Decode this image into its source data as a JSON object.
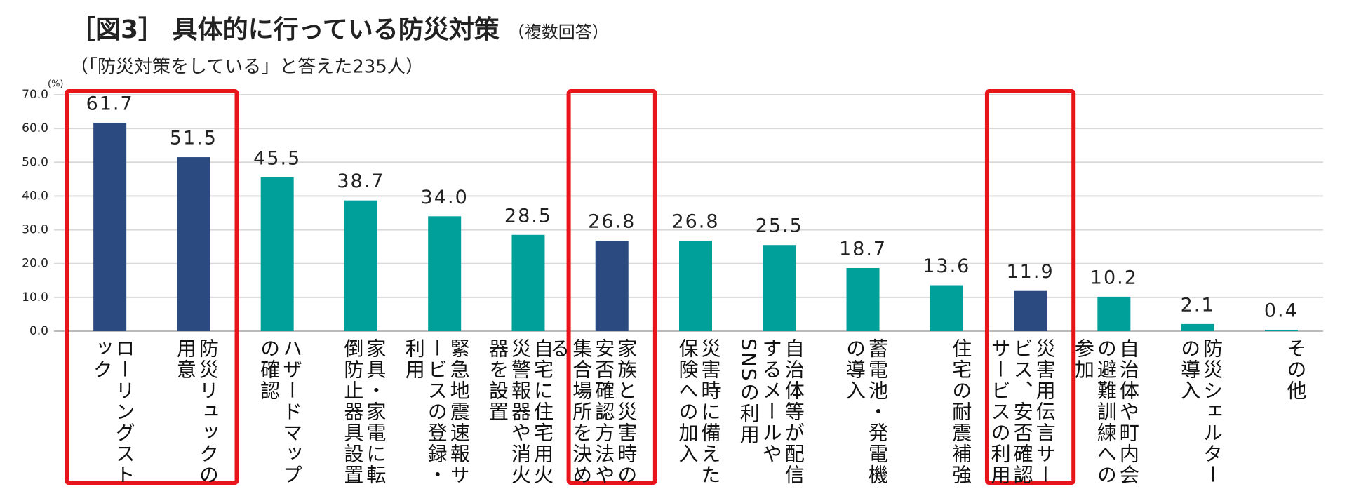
{
  "chart_data": {
    "type": "bar",
    "title": "［図3］ 具体的に行っている防災対策",
    "title_note": "（複数回答）",
    "subtitle": "（「防災対策をしている」と答えた235人）",
    "y_unit": "(%)",
    "categories": [
      "ローリングストック",
      "防災リュックの用意",
      "ハザードマップの確認",
      "家具・家電に転倒防止器具設置",
      "緊急地震速報サービスの登録・利用",
      "自宅に住宅用火災警報器や消火器を設置",
      "家族と災害時の安否確認方法や集合場所を決める",
      "災害時に備えた保険への加入",
      "自治体等が配信するメールやSNSの利用",
      "蓄電池・発電機の導入",
      "住宅の耐震補強",
      "災害用伝言サービス、安否確認サービスの利用",
      "自治体や町内会の避難訓練への参加",
      "防災シェルターの導入",
      "その他"
    ],
    "values": [
      61.7,
      51.5,
      45.5,
      38.7,
      34,
      28.5,
      26.8,
      26.8,
      25.5,
      18.7,
      13.6,
      11.9,
      10.2,
      2.1,
      0.4
    ],
    "value_labels": [
      "61.7",
      "51.5",
      "45.5",
      "38.7",
      "34.0",
      "28.5",
      "26.8",
      "26.8",
      "25.5",
      "18.7",
      "13.6",
      "11.9",
      "10.2",
      "2.1",
      "0.4"
    ],
    "colors": [
      "#2b4a80",
      "#2b4a80",
      "#00a09a",
      "#00a09a",
      "#00a09a",
      "#00a09a",
      "#2b4a80",
      "#00a09a",
      "#00a09a",
      "#00a09a",
      "#00a09a",
      "#2b4a80",
      "#00a09a",
      "#00a09a",
      "#00a09a"
    ],
    "highlight_color": "#e8141b",
    "ylim": [
      0,
      70
    ],
    "yticks": [
      {
        "value": 0,
        "label": "0.0"
      },
      {
        "value": 10,
        "label": "10.0"
      },
      {
        "value": 20,
        "label": "20.0"
      },
      {
        "value": 30,
        "label": "30.0"
      },
      {
        "value": 40,
        "label": "40.0"
      },
      {
        "value": 50,
        "label": "50.0"
      },
      {
        "value": 60,
        "label": "60.0"
      },
      {
        "value": 70,
        "label": "70.0"
      }
    ],
    "grid": true
  }
}
